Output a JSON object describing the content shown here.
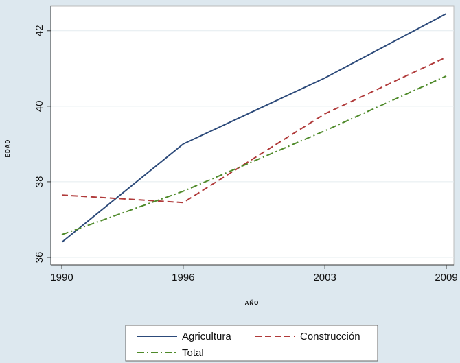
{
  "chart_data": {
    "type": "line",
    "xlabel": "AÑO",
    "ylabel": "EDAD",
    "x": [
      1990,
      1996,
      2003,
      2009
    ],
    "x_ticks": [
      "1990",
      "1996",
      "2003",
      "2009"
    ],
    "y_ticks": [
      "36",
      "38",
      "40",
      "42"
    ],
    "xlim": [
      1990,
      2009
    ],
    "ylim": [
      35.8,
      42.65
    ],
    "grid": "horizontal",
    "legend": "bottom",
    "series": [
      {
        "name": "Agricultura",
        "values": [
          36.4,
          39.0,
          40.75,
          42.45
        ],
        "color": "#2c4a7a",
        "style": "solid"
      },
      {
        "name": "Construcción",
        "values": [
          37.65,
          37.45,
          39.8,
          41.3
        ],
        "color": "#b03a3a",
        "style": "dashed"
      },
      {
        "name": "Total",
        "values": [
          36.6,
          37.75,
          39.35,
          40.8
        ],
        "color": "#4f8a2a",
        "style": "dashdot"
      }
    ]
  }
}
